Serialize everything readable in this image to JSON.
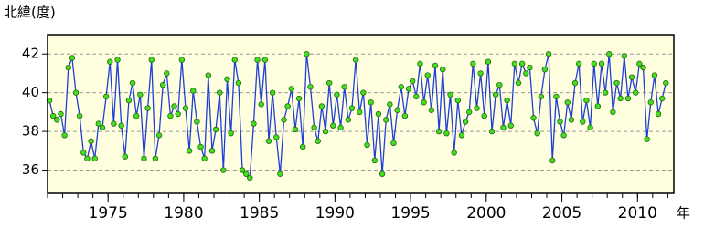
{
  "chart_data": {
    "type": "line",
    "y_label": "北緯(度)",
    "x_label": "年",
    "x": [
      1971.125,
      1971.375,
      1971.625,
      1971.875,
      1972.125,
      1972.375,
      1972.625,
      1972.875,
      1973.125,
      1973.375,
      1973.625,
      1973.875,
      1974.125,
      1974.375,
      1974.625,
      1974.875,
      1975.125,
      1975.375,
      1975.625,
      1975.875,
      1976.125,
      1976.375,
      1976.625,
      1976.875,
      1977.125,
      1977.375,
      1977.625,
      1977.875,
      1978.125,
      1978.375,
      1978.625,
      1978.875,
      1979.125,
      1979.375,
      1979.625,
      1979.875,
      1980.125,
      1980.375,
      1980.625,
      1980.875,
      1981.125,
      1981.375,
      1981.625,
      1981.875,
      1982.125,
      1982.375,
      1982.625,
      1982.875,
      1983.125,
      1983.375,
      1983.625,
      1983.875,
      1984.125,
      1984.375,
      1984.625,
      1984.875,
      1985.125,
      1985.375,
      1985.625,
      1985.875,
      1986.125,
      1986.375,
      1986.625,
      1986.875,
      1987.125,
      1987.375,
      1987.625,
      1987.875,
      1988.125,
      1988.375,
      1988.625,
      1988.875,
      1989.125,
      1989.375,
      1989.625,
      1989.875,
      1990.125,
      1990.375,
      1990.625,
      1990.875,
      1991.125,
      1991.375,
      1991.625,
      1991.875,
      1992.125,
      1992.375,
      1992.625,
      1992.875,
      1993.125,
      1993.375,
      1993.625,
      1993.875,
      1994.125,
      1994.375,
      1994.625,
      1994.875,
      1995.125,
      1995.375,
      1995.625,
      1995.875,
      1996.125,
      1996.375,
      1996.625,
      1996.875,
      1997.125,
      1997.375,
      1997.625,
      1997.875,
      1998.125,
      1998.375,
      1998.625,
      1998.875,
      1999.125,
      1999.375,
      1999.625,
      1999.875,
      2000.125,
      2000.375,
      2000.625,
      2000.875,
      2001.125,
      2001.375,
      2001.625,
      2001.875,
      2002.125,
      2002.375,
      2002.625,
      2002.875,
      2003.125,
      2003.375,
      2003.625,
      2003.875,
      2004.125,
      2004.375,
      2004.625,
      2004.875,
      2005.125,
      2005.375,
      2005.625,
      2005.875,
      2006.125,
      2006.375,
      2006.625,
      2006.875,
      2007.125,
      2007.375,
      2007.625,
      2007.875,
      2008.125,
      2008.375,
      2008.625,
      2008.875,
      2009.125,
      2009.375,
      2009.625,
      2009.875,
      2010.125,
      2010.375,
      2010.625,
      2010.875,
      2011.125,
      2011.375,
      2011.625,
      2011.875
    ],
    "values": [
      39.6,
      38.8,
      38.6,
      38.9,
      37.8,
      41.3,
      41.8,
      40.0,
      38.8,
      36.9,
      36.6,
      37.5,
      36.6,
      38.4,
      38.2,
      39.8,
      41.6,
      38.4,
      41.7,
      38.3,
      36.7,
      39.6,
      40.5,
      38.8,
      39.9,
      36.6,
      39.2,
      41.7,
      36.6,
      37.8,
      40.4,
      41.0,
      38.8,
      39.3,
      38.9,
      41.7,
      39.2,
      37.0,
      40.1,
      38.5,
      37.2,
      36.6,
      40.9,
      37.0,
      38.1,
      40.0,
      36.0,
      40.7,
      37.9,
      41.7,
      40.5,
      36.0,
      35.8,
      35.6,
      38.4,
      41.7,
      39.4,
      41.7,
      37.5,
      40.0,
      37.7,
      35.8,
      38.6,
      39.3,
      40.2,
      38.1,
      39.7,
      37.2,
      42.0,
      40.3,
      38.2,
      37.5,
      39.3,
      38.0,
      40.5,
      38.3,
      39.9,
      38.2,
      40.3,
      38.6,
      39.2,
      41.7,
      39.0,
      40.0,
      37.3,
      39.5,
      36.5,
      38.9,
      35.8,
      38.6,
      39.4,
      37.4,
      39.1,
      40.3,
      38.8,
      40.2,
      40.6,
      39.8,
      41.5,
      39.5,
      40.9,
      39.1,
      41.4,
      38.0,
      41.2,
      37.9,
      39.9,
      36.9,
      39.6,
      37.8,
      38.5,
      39.0,
      41.5,
      39.2,
      41.0,
      38.8,
      41.6,
      38.0,
      39.9,
      40.4,
      38.2,
      39.6,
      38.3,
      41.5,
      40.5,
      41.5,
      41.0,
      41.3,
      38.7,
      37.9,
      39.8,
      41.2,
      42.0,
      36.5,
      39.8,
      38.5,
      37.8,
      39.5,
      38.6,
      40.5,
      41.5,
      38.5,
      39.6,
      38.2,
      41.5,
      39.3,
      41.5,
      40.0,
      42.0,
      39.0,
      40.5,
      39.7,
      41.9,
      39.7,
      40.8,
      40.0,
      41.5,
      41.3,
      37.6,
      39.5,
      40.9,
      38.9,
      39.7,
      40.5
    ],
    "line_color": "#1f3fd6",
    "marker_color": "#44dd22",
    "xlim": [
      1971.0,
      2012.4
    ],
    "ylim": [
      34.8,
      43
    ],
    "xticks": [
      1975,
      1980,
      1985,
      1990,
      1995,
      2000,
      2005,
      2010
    ],
    "xminorticks": [
      1971,
      1972,
      1973,
      1974,
      1975,
      1976,
      1977,
      1978,
      1979,
      1980,
      1981,
      1982,
      1983,
      1984,
      1985,
      1986,
      1987,
      1988,
      1989,
      1990,
      1991,
      1992,
      1993,
      1994,
      1995,
      1996,
      1997,
      1998,
      1999,
      2000,
      2001,
      2002,
      2003,
      2004,
      2005,
      2006,
      2007,
      2008,
      2009,
      2010,
      2011,
      2012
    ],
    "yticks": [
      36,
      38,
      40,
      42
    ],
    "grid": true
  }
}
